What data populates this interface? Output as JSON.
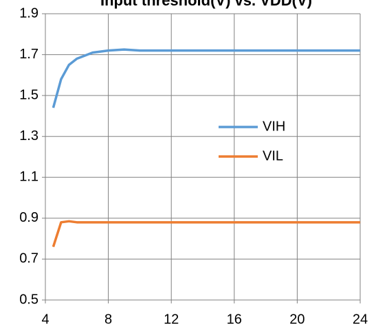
{
  "chart_data": {
    "type": "line",
    "title": "Input threshold(V) vs. VDD(V)",
    "x": [
      4.5,
      5,
      5.5,
      6,
      7,
      8,
      9,
      10,
      12,
      16,
      20,
      24
    ],
    "series": [
      {
        "name": "VIH",
        "color": "#5b9bd5",
        "values": [
          1.44,
          1.58,
          1.65,
          1.68,
          1.71,
          1.72,
          1.725,
          1.72,
          1.72,
          1.72,
          1.72,
          1.72
        ]
      },
      {
        "name": "VIL",
        "color": "#ed7d31",
        "values": [
          0.76,
          0.88,
          0.885,
          0.88,
          0.88,
          0.88,
          0.88,
          0.88,
          0.88,
          0.88,
          0.88,
          0.88
        ]
      }
    ],
    "xlim": [
      4,
      24
    ],
    "xticks": [
      4,
      8,
      12,
      16,
      20,
      24
    ],
    "ylim": [
      0.5,
      1.9
    ],
    "yticks": [
      0.5,
      0.7,
      0.9,
      1.1,
      1.3,
      1.5,
      1.7,
      1.9
    ],
    "grid": true,
    "legend": "center-right"
  }
}
